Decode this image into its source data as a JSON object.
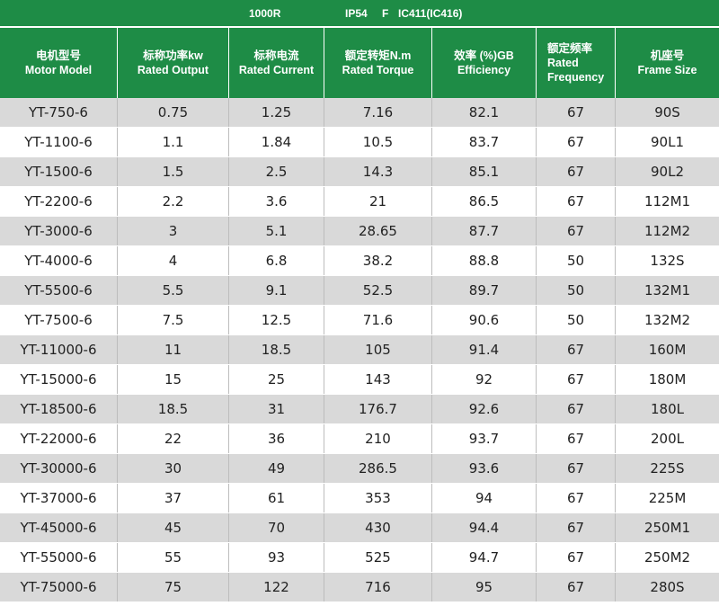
{
  "top_bar": {
    "speed": "1000R",
    "protection": "IP54",
    "insulation": "F",
    "cooling": "IC411(IC416)"
  },
  "columns": [
    {
      "zh": "电机型号",
      "en": "Motor Model"
    },
    {
      "zh": "标称功率kw",
      "en": "Rated Output"
    },
    {
      "zh": "标称电流",
      "en": "Rated Current"
    },
    {
      "zh": "额定转矩N.m",
      "en": "Rated Torque"
    },
    {
      "zh": "效率 (%)GB",
      "en": "Efficiency"
    },
    {
      "zh": "额定频率",
      "en": "Rated Frequency"
    },
    {
      "zh": "机座号",
      "en": "Frame Size"
    }
  ],
  "rows": [
    [
      "YT-750-6",
      "0.75",
      "1.25",
      "7.16",
      "82.1",
      "67",
      "90S"
    ],
    [
      "YT-1100-6",
      "1.1",
      "1.84",
      "10.5",
      "83.7",
      "67",
      "90L1"
    ],
    [
      "YT-1500-6",
      "1.5",
      "2.5",
      "14.3",
      "85.1",
      "67",
      "90L2"
    ],
    [
      "YT-2200-6",
      "2.2",
      "3.6",
      "21",
      "86.5",
      "67",
      "112M1"
    ],
    [
      "YT-3000-6",
      "3",
      "5.1",
      "28.65",
      "87.7",
      "67",
      "112M2"
    ],
    [
      "YT-4000-6",
      "4",
      "6.8",
      "38.2",
      "88.8",
      "50",
      "132S"
    ],
    [
      "YT-5500-6",
      "5.5",
      "9.1",
      "52.5",
      "89.7",
      "50",
      "132M1"
    ],
    [
      "YT-7500-6",
      "7.5",
      "12.5",
      "71.6",
      "90.6",
      "50",
      "132M2"
    ],
    [
      "YT-11000-6",
      "11",
      "18.5",
      "105",
      "91.4",
      "67",
      "160M"
    ],
    [
      "YT-15000-6",
      "15",
      "25",
      "143",
      "92",
      "67",
      "180M"
    ],
    [
      "YT-18500-6",
      "18.5",
      "31",
      "176.7",
      "92.6",
      "67",
      "180L"
    ],
    [
      "YT-22000-6",
      "22",
      "36",
      "210",
      "93.7",
      "67",
      "200L"
    ],
    [
      "YT-30000-6",
      "30",
      "49",
      "286.5",
      "93.6",
      "67",
      "225S"
    ],
    [
      "YT-37000-6",
      "37",
      "61",
      "353",
      "94",
      "67",
      "225M"
    ],
    [
      "YT-45000-6",
      "45",
      "70",
      "430",
      "94.4",
      "67",
      "250M1"
    ],
    [
      "YT-55000-6",
      "55",
      "93",
      "525",
      "94.7",
      "67",
      "250M2"
    ],
    [
      "YT-75000-6",
      "75",
      "122",
      "716",
      "95",
      "67",
      "280S"
    ]
  ],
  "colors": {
    "header_green": "#1e8c46",
    "stripe_gray": "#d9d9d9",
    "text_dark": "#222222"
  }
}
